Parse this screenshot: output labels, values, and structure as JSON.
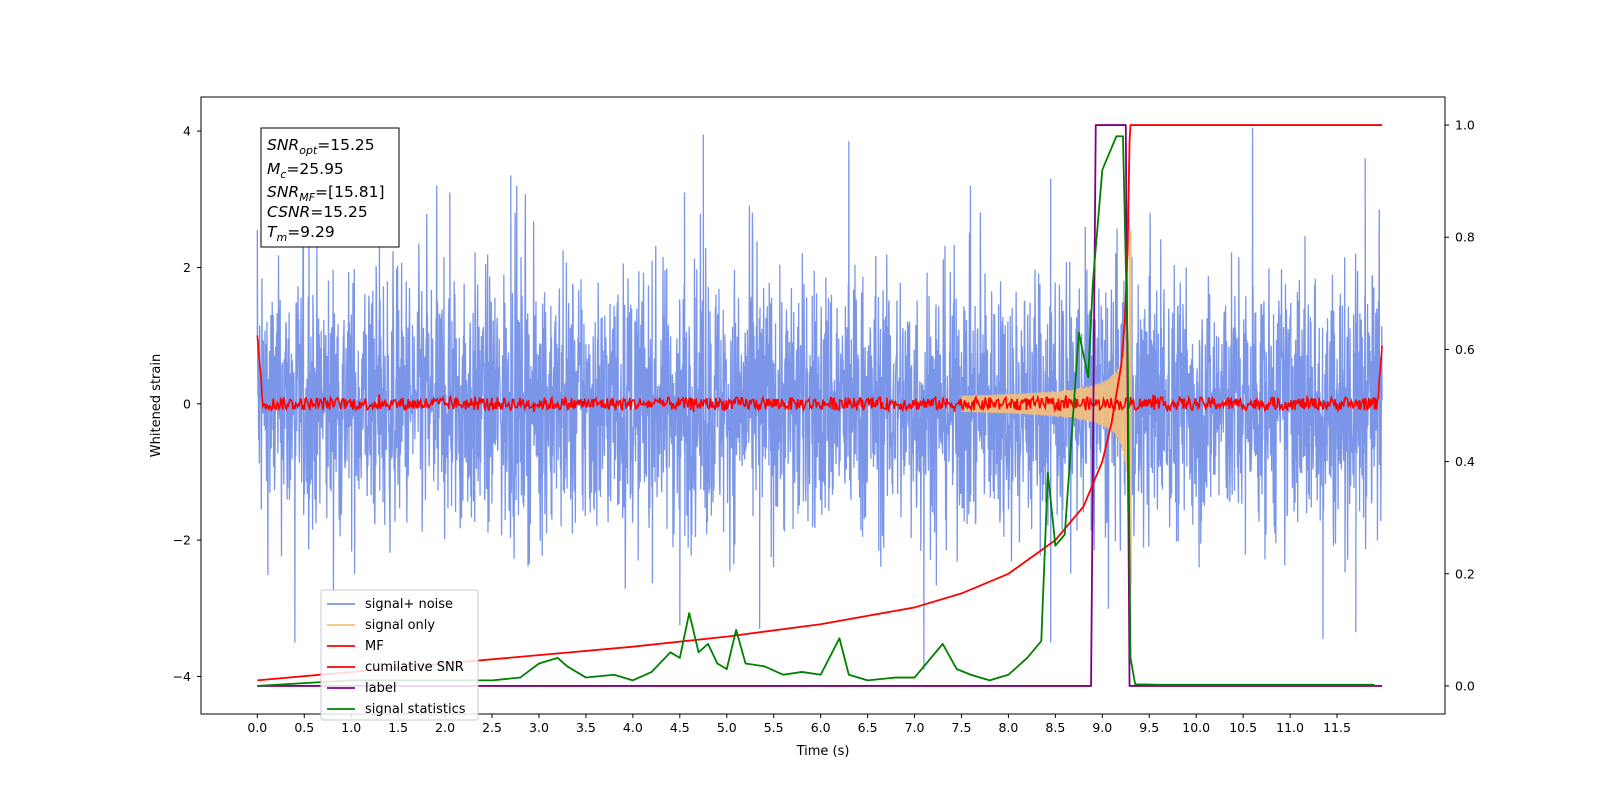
{
  "chart_data": {
    "type": "line",
    "xlabel": "Time (s)",
    "ylabel": "Whitened strain",
    "xlim": [
      -0.6,
      12.65
    ],
    "ylim": [
      -4.55,
      4.5
    ],
    "ylim_right": [
      -0.05,
      1.05
    ],
    "x_ticks": [
      0.0,
      0.5,
      1.0,
      1.5,
      2.0,
      2.5,
      3.0,
      3.5,
      4.0,
      4.5,
      5.0,
      5.5,
      6.0,
      6.5,
      7.0,
      7.5,
      8.0,
      8.5,
      9.0,
      9.5,
      10.0,
      10.5,
      11.0,
      11.5
    ],
    "x_tick_labels": [
      "0.0",
      "0.5",
      "1.0",
      "1.5",
      "2.0",
      "2.5",
      "3.0",
      "3.5",
      "4.0",
      "4.5",
      "5.0",
      "5.5",
      "6.0",
      "6.5",
      "7.0",
      "7.5",
      "8.0",
      "8.5",
      "9.0",
      "9.5",
      "10.0",
      "10.5",
      "11.0",
      "11.5"
    ],
    "y_ticks": [
      -4,
      -2,
      0,
      2,
      4
    ],
    "y_tick_labels": [
      "−4",
      "−2",
      "0",
      "2",
      "4"
    ],
    "y_right_ticks": [
      0.0,
      0.2,
      0.4,
      0.6,
      0.8,
      1.0
    ],
    "y_right_tick_labels": [
      "0.0",
      "0.2",
      "0.4",
      "0.6",
      "0.8",
      "1.0"
    ],
    "grid": false,
    "legend_position": "lower-left",
    "annotation": [
      {
        "base": "SNR",
        "sub": "opt",
        "value": "=15.25"
      },
      {
        "base": "M",
        "sub": "c",
        "value": "=25.95"
      },
      {
        "base": "SNR",
        "sub": "MF",
        "value": "=[15.81]"
      },
      {
        "base": "CSNR",
        "sub": "",
        "value": "=15.25"
      },
      {
        "base": "T",
        "sub": "m",
        "value": "=9.29"
      }
    ],
    "series": [
      {
        "name": "signal+ noise",
        "axis": "left",
        "color": "#7b96e8",
        "x_range": [
          0.0,
          11.98
        ],
        "envelope_typical": [
          -1.5,
          1.5
        ],
        "peaks": [
          [
            0.0,
            2.55
          ],
          [
            0.55,
            3.1
          ],
          [
            1.3,
            3.0
          ],
          [
            2.05,
            3.1
          ],
          [
            2.7,
            3.35
          ],
          [
            4.55,
            3.1
          ],
          [
            4.75,
            3.95
          ],
          [
            6.3,
            3.85
          ],
          [
            8.45,
            3.3
          ],
          [
            10.6,
            4.05
          ],
          [
            11.8,
            3.6
          ],
          [
            11.95,
            2.85
          ],
          [
            0.4,
            -3.5
          ],
          [
            4.5,
            -3.25
          ],
          [
            5.35,
            -3.3
          ],
          [
            7.1,
            -3.9
          ],
          [
            8.45,
            -3.5
          ],
          [
            11.35,
            -3.45
          ],
          [
            11.7,
            -3.35
          ]
        ]
      },
      {
        "name": "signal only",
        "axis": "left",
        "color": "#f5c07a",
        "chirp_start": 7.5,
        "merger_time": 9.29,
        "peak_amplitude": 2.8
      },
      {
        "name": "MF",
        "axis": "left",
        "color": "#ff0000",
        "description_values": {
          "baseline": 0.0,
          "noise_amplitude": 0.12,
          "start_value": 1.0,
          "end_value": 0.85
        }
      },
      {
        "name": "cumilative SNR",
        "axis": "right",
        "color": "#ff0000",
        "x": [
          0.0,
          1.0,
          2.0,
          3.0,
          4.0,
          5.0,
          6.0,
          7.0,
          7.5,
          8.0,
          8.5,
          8.8,
          9.0,
          9.1,
          9.2,
          9.24,
          9.27,
          9.29,
          9.3,
          11.98
        ],
        "y": [
          0.01,
          0.025,
          0.04,
          0.055,
          0.07,
          0.088,
          0.11,
          0.14,
          0.165,
          0.2,
          0.26,
          0.32,
          0.4,
          0.47,
          0.57,
          0.65,
          0.78,
          0.97,
          1.0,
          1.0
        ]
      },
      {
        "name": "label",
        "axis": "right",
        "color": "#800080",
        "x": [
          0.0,
          8.88,
          8.93,
          9.25,
          9.29,
          11.98
        ],
        "y": [
          0.0,
          0.0,
          1.0,
          1.0,
          0.0,
          0.0
        ]
      },
      {
        "name": "signal statistics",
        "axis": "right",
        "color": "#008000",
        "x": [
          0.0,
          0.5,
          1.0,
          1.5,
          2.0,
          2.5,
          2.8,
          3.0,
          3.2,
          3.3,
          3.5,
          3.8,
          4.0,
          4.2,
          4.4,
          4.5,
          4.6,
          4.7,
          4.8,
          4.9,
          5.0,
          5.1,
          5.2,
          5.4,
          5.6,
          5.8,
          6.0,
          6.2,
          6.3,
          6.5,
          6.8,
          7.0,
          7.3,
          7.45,
          7.6,
          7.8,
          8.0,
          8.2,
          8.35,
          8.42,
          8.5,
          8.6,
          8.75,
          8.85,
          8.9,
          9.0,
          9.15,
          9.22,
          9.27,
          9.3,
          9.35,
          9.6,
          11.9
        ],
        "y": [
          0.0,
          0.005,
          0.01,
          0.01,
          0.01,
          0.01,
          0.015,
          0.04,
          0.05,
          0.035,
          0.015,
          0.02,
          0.01,
          0.025,
          0.06,
          0.05,
          0.13,
          0.06,
          0.075,
          0.04,
          0.03,
          0.1,
          0.04,
          0.035,
          0.02,
          0.025,
          0.02,
          0.085,
          0.02,
          0.01,
          0.015,
          0.015,
          0.075,
          0.03,
          0.02,
          0.01,
          0.02,
          0.05,
          0.08,
          0.38,
          0.25,
          0.27,
          0.63,
          0.55,
          0.72,
          0.92,
          0.98,
          0.98,
          0.6,
          0.05,
          0.003,
          0.002,
          0.002
        ]
      }
    ]
  }
}
